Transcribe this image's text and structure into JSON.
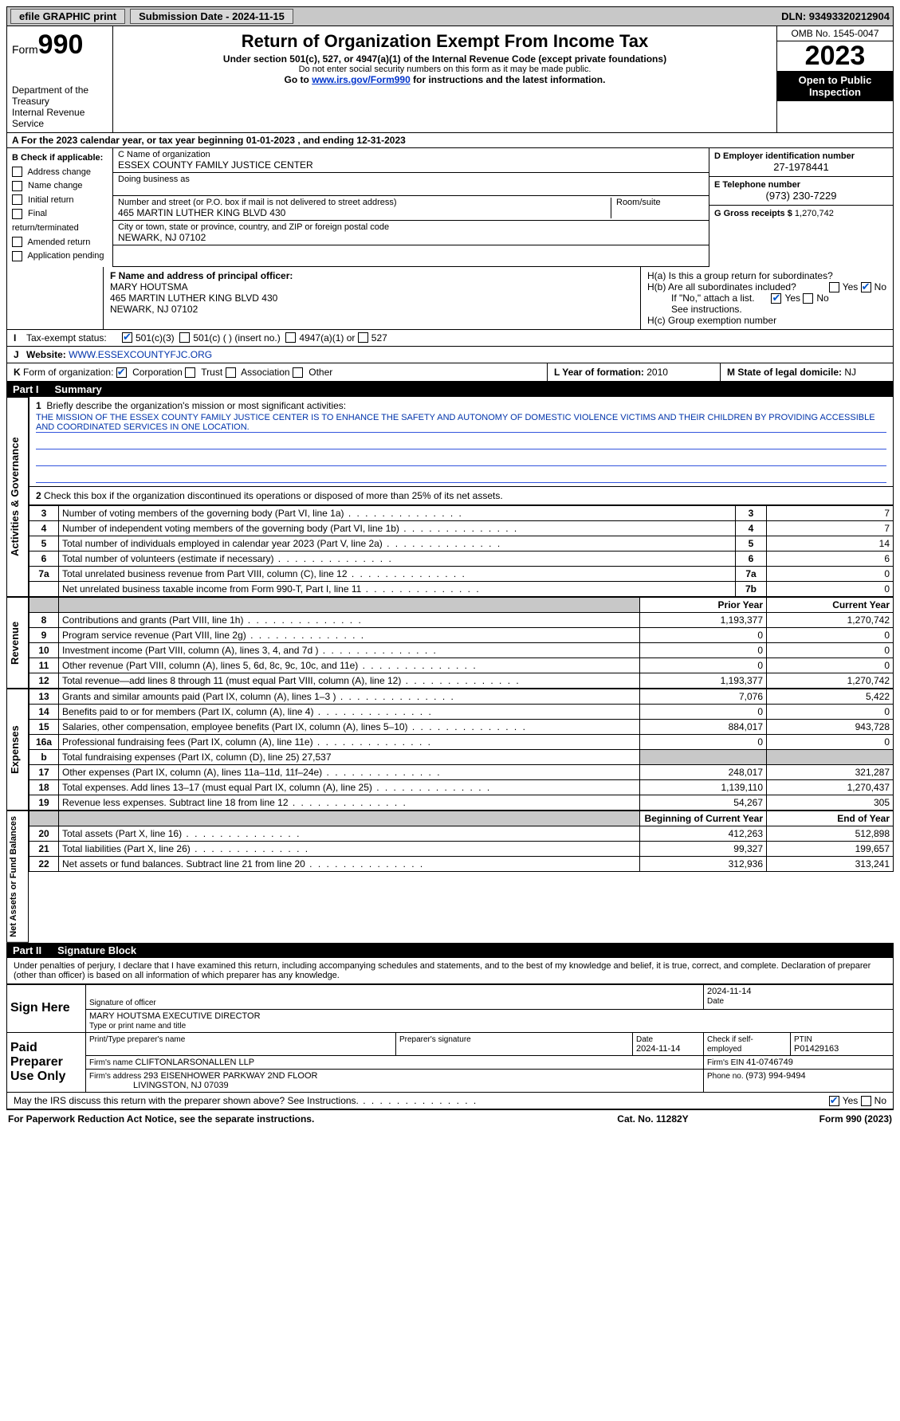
{
  "topbar": {
    "efile": "efile GRAPHIC print",
    "submission": "Submission Date - 2024-11-15",
    "dln": "DLN: 93493320212904"
  },
  "header": {
    "form_label": "Form",
    "form_num": "990",
    "dept": "Department of the Treasury",
    "irs": "Internal Revenue Service",
    "title": "Return of Organization Exempt From Income Tax",
    "subtitle": "Under section 501(c), 527, or 4947(a)(1) of the Internal Revenue Code (except private foundations)",
    "warn": "Do not enter social security numbers on this form as it may be made public.",
    "goto_pre": "Go to ",
    "goto_link": "www.irs.gov/Form990",
    "goto_post": " for instructions and the latest information.",
    "omb": "OMB No. 1545-0047",
    "year": "2023",
    "inspect": "Open to Public Inspection"
  },
  "period": {
    "text_a": "For the 2023 calendar year, or tax year beginning ",
    "beg": "01-01-2023",
    "mid": " , and ending ",
    "end": "12-31-2023"
  },
  "boxB": {
    "label": "B Check if applicable:",
    "items": [
      "Address change",
      "Name change",
      "Initial return",
      "Final return/terminated",
      "Amended return",
      "Application pending"
    ]
  },
  "boxC": {
    "name_label": "C Name of organization",
    "name_val": "ESSEX COUNTY FAMILY JUSTICE CENTER",
    "dba_label": "Doing business as",
    "street_label": "Number and street (or P.O. box if mail is not delivered to street address)",
    "room_label": "Room/suite",
    "street_val": "465 MARTIN LUTHER KING BLVD 430",
    "city_label": "City or town, state or province, country, and ZIP or foreign postal code",
    "city_val": "NEWARK, NJ  07102"
  },
  "boxDE": {
    "d_label": "D Employer identification number",
    "d_val": "27-1978441",
    "e_label": "E Telephone number",
    "e_val": "(973) 230-7229",
    "g_label": "G Gross receipts $ ",
    "g_val": "1,270,742"
  },
  "boxF": {
    "label": "F Name and address of principal officer:",
    "name": "MARY HOUTSMA",
    "addr1": "465 MARTIN LUTHER KING BLVD 430",
    "addr2": "NEWARK, NJ  07102"
  },
  "boxH": {
    "ha": "H(a)  Is this a group return for subordinates?",
    "hb": "H(b)  Are all subordinates included?",
    "hb_note": "If \"No,\" attach a list. See instructions.",
    "hc": "H(c)  Group exemption number ",
    "yes": "Yes",
    "no": "No"
  },
  "rowI": {
    "label": "I",
    "text": "Tax-exempt status:",
    "o1": "501(c)(3)",
    "o2": "501(c) (  ) (insert no.)",
    "o3": "4947(a)(1) or",
    "o4": "527"
  },
  "rowJ": {
    "label": "J",
    "text": "Website: ",
    "val": "WWW.ESSEXCOUNTYFJC.ORG"
  },
  "rowK": {
    "label": "K",
    "text": "Form of organization:",
    "o1": "Corporation",
    "o2": "Trust",
    "o3": "Association",
    "o4": "Other"
  },
  "rowL": {
    "text": "L Year of formation: ",
    "val": "2010"
  },
  "rowM": {
    "text": "M State of legal domicile: ",
    "val": "NJ"
  },
  "part1": {
    "num": "Part I",
    "title": "Summary"
  },
  "summary": {
    "l1_label": "1",
    "l1_text": "Briefly describe the organization's mission or most significant activities:",
    "l1_val": "THE MISSION OF THE ESSEX COUNTY FAMILY JUSTICE CENTER IS TO ENHANCE THE SAFETY AND AUTONOMY OF DOMESTIC VIOLENCE VICTIMS AND THEIR CHILDREN BY PROVIDING ACCESSIBLE AND COORDINATED SERVICES IN ONE LOCATION.",
    "l2": "Check this box      if the organization discontinued its operations or disposed of more than 25% of its net assets.",
    "rows_gov": [
      {
        "n": "3",
        "d": "Number of voting members of the governing body (Part VI, line 1a)",
        "b": "3",
        "v": "7"
      },
      {
        "n": "4",
        "d": "Number of independent voting members of the governing body (Part VI, line 1b)",
        "b": "4",
        "v": "7"
      },
      {
        "n": "5",
        "d": "Total number of individuals employed in calendar year 2023 (Part V, line 2a)",
        "b": "5",
        "v": "14"
      },
      {
        "n": "6",
        "d": "Total number of volunteers (estimate if necessary)",
        "b": "6",
        "v": "6"
      },
      {
        "n": "7a",
        "d": "Total unrelated business revenue from Part VIII, column (C), line 12",
        "b": "7a",
        "v": "0"
      },
      {
        "n": "",
        "d": "Net unrelated business taxable income from Form 990-T, Part I, line 11",
        "b": "7b",
        "v": "0"
      }
    ],
    "hdr_prior": "Prior Year",
    "hdr_curr": "Current Year",
    "rows_rev": [
      {
        "n": "8",
        "d": "Contributions and grants (Part VIII, line 1h)",
        "p": "1,193,377",
        "c": "1,270,742"
      },
      {
        "n": "9",
        "d": "Program service revenue (Part VIII, line 2g)",
        "p": "0",
        "c": "0"
      },
      {
        "n": "10",
        "d": "Investment income (Part VIII, column (A), lines 3, 4, and 7d )",
        "p": "0",
        "c": "0"
      },
      {
        "n": "11",
        "d": "Other revenue (Part VIII, column (A), lines 5, 6d, 8c, 9c, 10c, and 11e)",
        "p": "0",
        "c": "0"
      },
      {
        "n": "12",
        "d": "Total revenue—add lines 8 through 11 (must equal Part VIII, column (A), line 12)",
        "p": "1,193,377",
        "c": "1,270,742"
      }
    ],
    "rows_exp": [
      {
        "n": "13",
        "d": "Grants and similar amounts paid (Part IX, column (A), lines 1–3 )",
        "p": "7,076",
        "c": "5,422"
      },
      {
        "n": "14",
        "d": "Benefits paid to or for members (Part IX, column (A), line 4)",
        "p": "0",
        "c": "0"
      },
      {
        "n": "15",
        "d": "Salaries, other compensation, employee benefits (Part IX, column (A), lines 5–10)",
        "p": "884,017",
        "c": "943,728"
      },
      {
        "n": "16a",
        "d": "Professional fundraising fees (Part IX, column (A), line 11e)",
        "p": "0",
        "c": "0"
      },
      {
        "n": "b",
        "d": "Total fundraising expenses (Part IX, column (D), line 25) 27,537",
        "p": "",
        "c": "",
        "grey": true
      },
      {
        "n": "17",
        "d": "Other expenses (Part IX, column (A), lines 11a–11d, 11f–24e)",
        "p": "248,017",
        "c": "321,287"
      },
      {
        "n": "18",
        "d": "Total expenses. Add lines 13–17 (must equal Part IX, column (A), line 25)",
        "p": "1,139,110",
        "c": "1,270,437"
      },
      {
        "n": "19",
        "d": "Revenue less expenses. Subtract line 18 from line 12",
        "p": "54,267",
        "c": "305"
      }
    ],
    "hdr_boy": "Beginning of Current Year",
    "hdr_eoy": "End of Year",
    "rows_net": [
      {
        "n": "20",
        "d": "Total assets (Part X, line 16)",
        "p": "412,263",
        "c": "512,898"
      },
      {
        "n": "21",
        "d": "Total liabilities (Part X, line 26)",
        "p": "99,327",
        "c": "199,657"
      },
      {
        "n": "22",
        "d": "Net assets or fund balances. Subtract line 21 from line 20",
        "p": "312,936",
        "c": "313,241"
      }
    ]
  },
  "sides": {
    "gov": "Activities & Governance",
    "rev": "Revenue",
    "exp": "Expenses",
    "net": "Net Assets or Fund Balances"
  },
  "part2": {
    "num": "Part II",
    "title": "Signature Block"
  },
  "sig": {
    "decl": "Under penalties of perjury, I declare that I have examined this return, including accompanying schedules and statements, and to the best of my knowledge and belief, it is true, correct, and complete. Declaration of preparer (other than officer) is based on all information of which preparer has any knowledge.",
    "sign_here": "Sign Here",
    "sig_officer": "Signature of officer",
    "sig_date": "2024-11-14",
    "sig_name": "MARY HOUTSMA  EXECUTIVE DIRECTOR",
    "sig_type": "Type or print name and title",
    "date_label": "Date",
    "paid": "Paid Preparer Use Only",
    "prep_name_l": "Print/Type preparer's name",
    "prep_sig_l": "Preparer's signature",
    "prep_date": "2024-11-14",
    "prep_check": "Check       if self-employed",
    "ptin_l": "PTIN",
    "ptin_v": "P01429163",
    "firm_name_l": "Firm's name   ",
    "firm_name_v": "CLIFTONLARSONALLEN LLP",
    "firm_ein_l": "Firm's EIN  ",
    "firm_ein_v": "41-0746749",
    "firm_addr_l": "Firm's address ",
    "firm_addr_v": "293 EISENHOWER PARKWAY 2ND FLOOR",
    "firm_addr2": "LIVINGSTON, NJ  07039",
    "phone_l": "Phone no. ",
    "phone_v": "(973) 994-9494",
    "discuss": "May the IRS discuss this return with the preparer shown above? See Instructions."
  },
  "footer": {
    "f1": "For Paperwork Reduction Act Notice, see the separate instructions.",
    "f2": "Cat. No. 11282Y",
    "f3": "Form 990 (2023)"
  }
}
